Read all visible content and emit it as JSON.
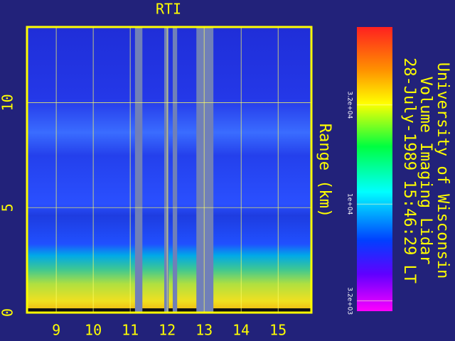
{
  "chart_data": {
    "type": "heatmap",
    "title": "RTI",
    "y_label": "Range (km)",
    "annotations": [
      "University of Wisconsin",
      "Volume Imaging Lidar",
      "28-July-1989 15:46:29 LT"
    ],
    "xlim": [
      8.21,
      15.9
    ],
    "xticks": [
      9,
      10,
      11,
      12,
      13,
      14,
      15
    ],
    "ylim": [
      0,
      13.6
    ],
    "yticks": [
      0,
      5,
      10
    ],
    "grid": true,
    "no_data_intervals": [
      [
        11.13,
        11.33
      ],
      [
        11.92,
        12.04
      ],
      [
        12.15,
        12.27
      ],
      [
        12.79,
        13.25
      ]
    ],
    "colorbar": {
      "log_scale": true,
      "lim": [
        2840,
        80000
      ],
      "ticks": [
        {
          "value": 3200,
          "label": "3.2e+03"
        },
        {
          "value": 10000,
          "label": "1e+04"
        },
        {
          "value": 32000,
          "label": "3.2e+04"
        }
      ]
    }
  }
}
